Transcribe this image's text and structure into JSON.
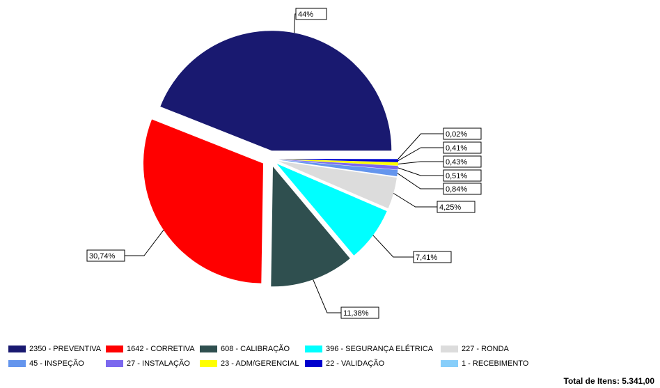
{
  "chart_data": {
    "type": "pie",
    "categories": [
      "2350 - PREVENTIVA",
      "1642 - CORRETIVA",
      "608 - CALIBRAÇÃO",
      "396 - SEGURANÇA ELÉTRICA",
      "227 - RONDA",
      "45 - INSPEÇÃO",
      "27 - INSTALAÇÃO",
      "23 - ADM/GERENCIAL",
      "22 - VALIDAÇÃO",
      "1 - RECEBIMENTO"
    ],
    "values": [
      44,
      30.74,
      11.38,
      7.41,
      4.25,
      0.84,
      0.51,
      0.43,
      0.41,
      0.02
    ],
    "value_labels": [
      "44%",
      "30,74%",
      "11,38%",
      "7,41%",
      "4,25%",
      "0,84%",
      "0,51%",
      "0,43%",
      "0,41%",
      "0,02%"
    ],
    "colors": [
      "#191970",
      "#ff0000",
      "#2f4f4f",
      "#00ffff",
      "#dcdcdc",
      "#6495ed",
      "#7b68ee",
      "#ffff00",
      "#0000cd",
      "#87cefa"
    ],
    "total_label": "Total de Itens: 5.341,00"
  }
}
